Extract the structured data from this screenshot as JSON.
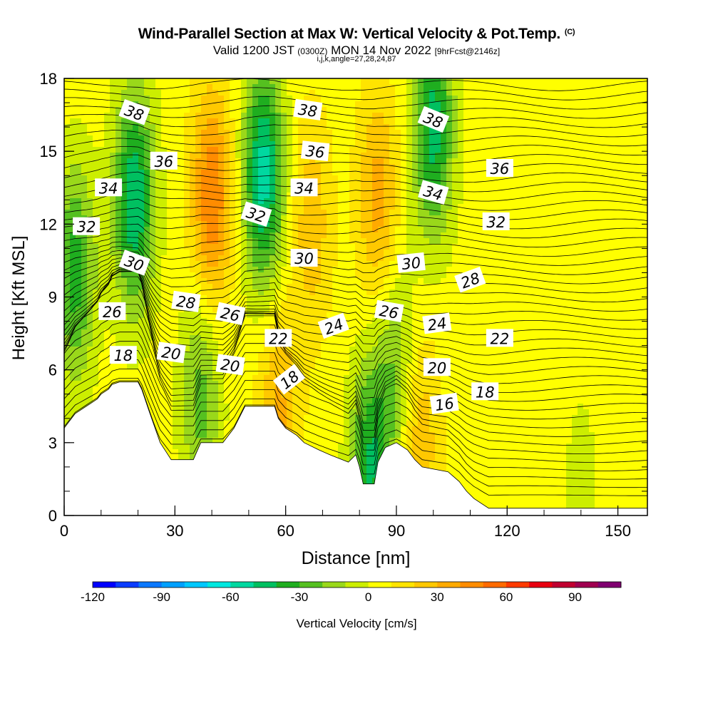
{
  "title": {
    "main": "Wind-Parallel Section at Max W: Vertical Velocity & Pot.Temp.",
    "copyright": "(C)",
    "valid_prefix": "Valid 1200 JST",
    "valid_utc": "(0300Z)",
    "valid_date": "MON 14 Nov 2022",
    "forecast": "[9hrFcst@2146z]",
    "indices": "i,j,k,angle=27,28,24,87"
  },
  "chart_data": {
    "type": "heatmap",
    "xlabel": "Distance [nm]",
    "ylabel": "Height [Kft MSL]",
    "xlim": [
      0,
      158
    ],
    "ylim": [
      0,
      18
    ],
    "xticks": [
      0,
      30,
      60,
      90,
      120,
      150
    ],
    "yticks": [
      0,
      3,
      6,
      9,
      12,
      15,
      18
    ],
    "x_minor_step": 10,
    "y_minor_step": 1,
    "colorbar": {
      "label": "Vertical Velocity [cm/s]",
      "min": -120,
      "max": 110,
      "step": 10,
      "ticks": [
        -120,
        -90,
        -60,
        -30,
        0,
        30,
        60,
        90
      ],
      "colors": [
        "#0000ff",
        "#0a3cff",
        "#0a78ff",
        "#00a0ff",
        "#00c8ff",
        "#00e8e0",
        "#00d8a0",
        "#00c060",
        "#1fae1f",
        "#55c020",
        "#9ad81a",
        "#ccee00",
        "#ffff00",
        "#ffe400",
        "#ffc800",
        "#ffaa00",
        "#ff8c00",
        "#ff6a00",
        "#ff3a00",
        "#e80010",
        "#c00030",
        "#a00050",
        "#800070"
      ]
    },
    "vertical_velocity": {
      "background_cm_s": 5,
      "features": [
        {
          "x": 3,
          "y": 10,
          "value": -40
        },
        {
          "x": 19,
          "y": 13,
          "value": -55
        },
        {
          "x": 40,
          "y": 13,
          "value": 45
        },
        {
          "x": 54,
          "y": 14,
          "value": -60
        },
        {
          "x": 67,
          "y": 12,
          "value": 22
        },
        {
          "x": 85,
          "y": 13,
          "value": 30
        },
        {
          "x": 100,
          "y": 16,
          "value": -50
        },
        {
          "x": 37,
          "y": 5,
          "value": -30
        },
        {
          "x": 58,
          "y": 4,
          "value": 28
        },
        {
          "x": 83,
          "y": 2,
          "value": -45
        },
        {
          "x": 90,
          "y": 6,
          "value": -25
        },
        {
          "x": 96,
          "y": 3,
          "value": 25
        },
        {
          "x": 140,
          "y": 1.5,
          "value": -8
        }
      ]
    },
    "potential_temperature_labels": [
      {
        "text": "38",
        "x": 19,
        "y": 16.6,
        "angle": 20
      },
      {
        "text": "38",
        "x": 66,
        "y": 16.7,
        "angle": 8
      },
      {
        "text": "38",
        "x": 100,
        "y": 16.3,
        "angle": 22
      },
      {
        "text": "36",
        "x": 27,
        "y": 14.6,
        "angle": 0
      },
      {
        "text": "36",
        "x": 68,
        "y": 15,
        "angle": 6
      },
      {
        "text": "36",
        "x": 118,
        "y": 14.3,
        "angle": 0
      },
      {
        "text": "34",
        "x": 12,
        "y": 13.5,
        "angle": 0
      },
      {
        "text": "34",
        "x": 65,
        "y": 13.5,
        "angle": 0
      },
      {
        "text": "34",
        "x": 100,
        "y": 13.3,
        "angle": 16
      },
      {
        "text": "32",
        "x": 6,
        "y": 11.9,
        "angle": 0
      },
      {
        "text": "32",
        "x": 52,
        "y": 12.4,
        "angle": 18
      },
      {
        "text": "32",
        "x": 117,
        "y": 12.1,
        "angle": 0
      },
      {
        "text": "30",
        "x": 19,
        "y": 10.4,
        "angle": 20
      },
      {
        "text": "30",
        "x": 65,
        "y": 10.6,
        "angle": 0
      },
      {
        "text": "30",
        "x": 94,
        "y": 10.4,
        "angle": -6
      },
      {
        "text": "28",
        "x": 33,
        "y": 8.8,
        "angle": 8
      },
      {
        "text": "28",
        "x": 110,
        "y": 9.7,
        "angle": -20
      },
      {
        "text": "26",
        "x": 13,
        "y": 8.4,
        "angle": 0
      },
      {
        "text": "26",
        "x": 45,
        "y": 8.3,
        "angle": 12
      },
      {
        "text": "26",
        "x": 88,
        "y": 8.4,
        "angle": 10
      },
      {
        "text": "24",
        "x": 73,
        "y": 7.8,
        "angle": -20
      },
      {
        "text": "24",
        "x": 101,
        "y": 7.9,
        "angle": -8
      },
      {
        "text": "22",
        "x": 58,
        "y": 7.3,
        "angle": 0
      },
      {
        "text": "22",
        "x": 118,
        "y": 7.3,
        "angle": 0
      },
      {
        "text": "20",
        "x": 29,
        "y": 6.7,
        "angle": 8
      },
      {
        "text": "20",
        "x": 45,
        "y": 6.2,
        "angle": 8
      },
      {
        "text": "20",
        "x": 101,
        "y": 6.1,
        "angle": 0
      },
      {
        "text": "18",
        "x": 16,
        "y": 6.6,
        "angle": 0
      },
      {
        "text": "18",
        "x": 61,
        "y": 5.6,
        "angle": -38
      },
      {
        "text": "18",
        "x": 114,
        "y": 5.1,
        "angle": 0
      },
      {
        "text": "16",
        "x": 103,
        "y": 4.6,
        "angle": -8
      }
    ],
    "terrain": [
      {
        "x": 0,
        "h": 3.6
      },
      {
        "x": 3,
        "h": 4.2
      },
      {
        "x": 6,
        "h": 4.5
      },
      {
        "x": 9,
        "h": 4.8
      },
      {
        "x": 10,
        "h": 5.0
      },
      {
        "x": 12,
        "h": 5.2
      },
      {
        "x": 13,
        "h": 5.4
      },
      {
        "x": 15,
        "h": 5.5
      },
      {
        "x": 20,
        "h": 5.5
      },
      {
        "x": 21,
        "h": 5.2
      },
      {
        "x": 23,
        "h": 4.3
      },
      {
        "x": 26,
        "h": 3.0
      },
      {
        "x": 29,
        "h": 2.3
      },
      {
        "x": 35,
        "h": 2.3
      },
      {
        "x": 37,
        "h": 3.0
      },
      {
        "x": 43,
        "h": 3.0
      },
      {
        "x": 46,
        "h": 3.6
      },
      {
        "x": 49,
        "h": 4.5
      },
      {
        "x": 57,
        "h": 4.5
      },
      {
        "x": 58,
        "h": 4.0
      },
      {
        "x": 60,
        "h": 3.6
      },
      {
        "x": 63,
        "h": 3.3
      },
      {
        "x": 65,
        "h": 3.0
      },
      {
        "x": 69,
        "h": 2.7
      },
      {
        "x": 72,
        "h": 2.5
      },
      {
        "x": 77,
        "h": 2.2
      },
      {
        "x": 79,
        "h": 2.5
      },
      {
        "x": 80,
        "h": 2.0
      },
      {
        "x": 81,
        "h": 1.3
      },
      {
        "x": 84,
        "h": 1.3
      },
      {
        "x": 85,
        "h": 2.2
      },
      {
        "x": 87,
        "h": 2.8
      },
      {
        "x": 90,
        "h": 3.0
      },
      {
        "x": 93,
        "h": 2.7
      },
      {
        "x": 95,
        "h": 2.3
      },
      {
        "x": 97,
        "h": 2.0
      },
      {
        "x": 104,
        "h": 1.8
      },
      {
        "x": 107,
        "h": 1.4
      },
      {
        "x": 109,
        "h": 1.0
      },
      {
        "x": 111,
        "h": 0.7
      },
      {
        "x": 115,
        "h": 0.3
      },
      {
        "x": 158,
        "h": 0.3
      }
    ]
  }
}
